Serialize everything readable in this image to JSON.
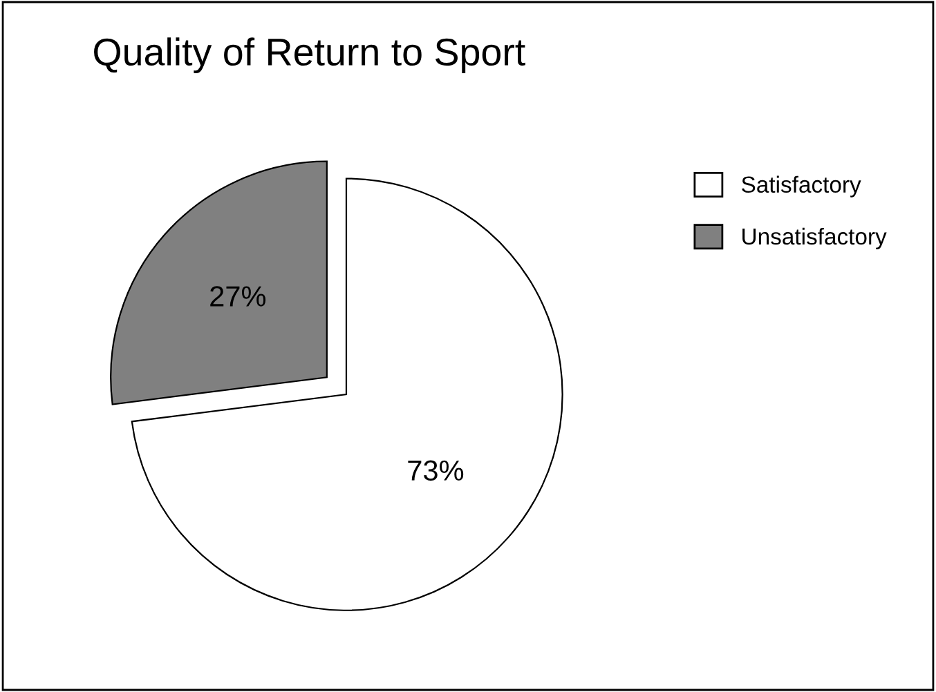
{
  "chart_data": {
    "type": "pie",
    "title": "Quality of Return to Sport",
    "categories": [
      "Satisfactory",
      "Unsatisfactory"
    ],
    "values": [
      73,
      27
    ],
    "colors": [
      "#ffffff",
      "#808080"
    ],
    "value_labels": [
      "73%",
      "27%"
    ],
    "legend": "top right"
  }
}
